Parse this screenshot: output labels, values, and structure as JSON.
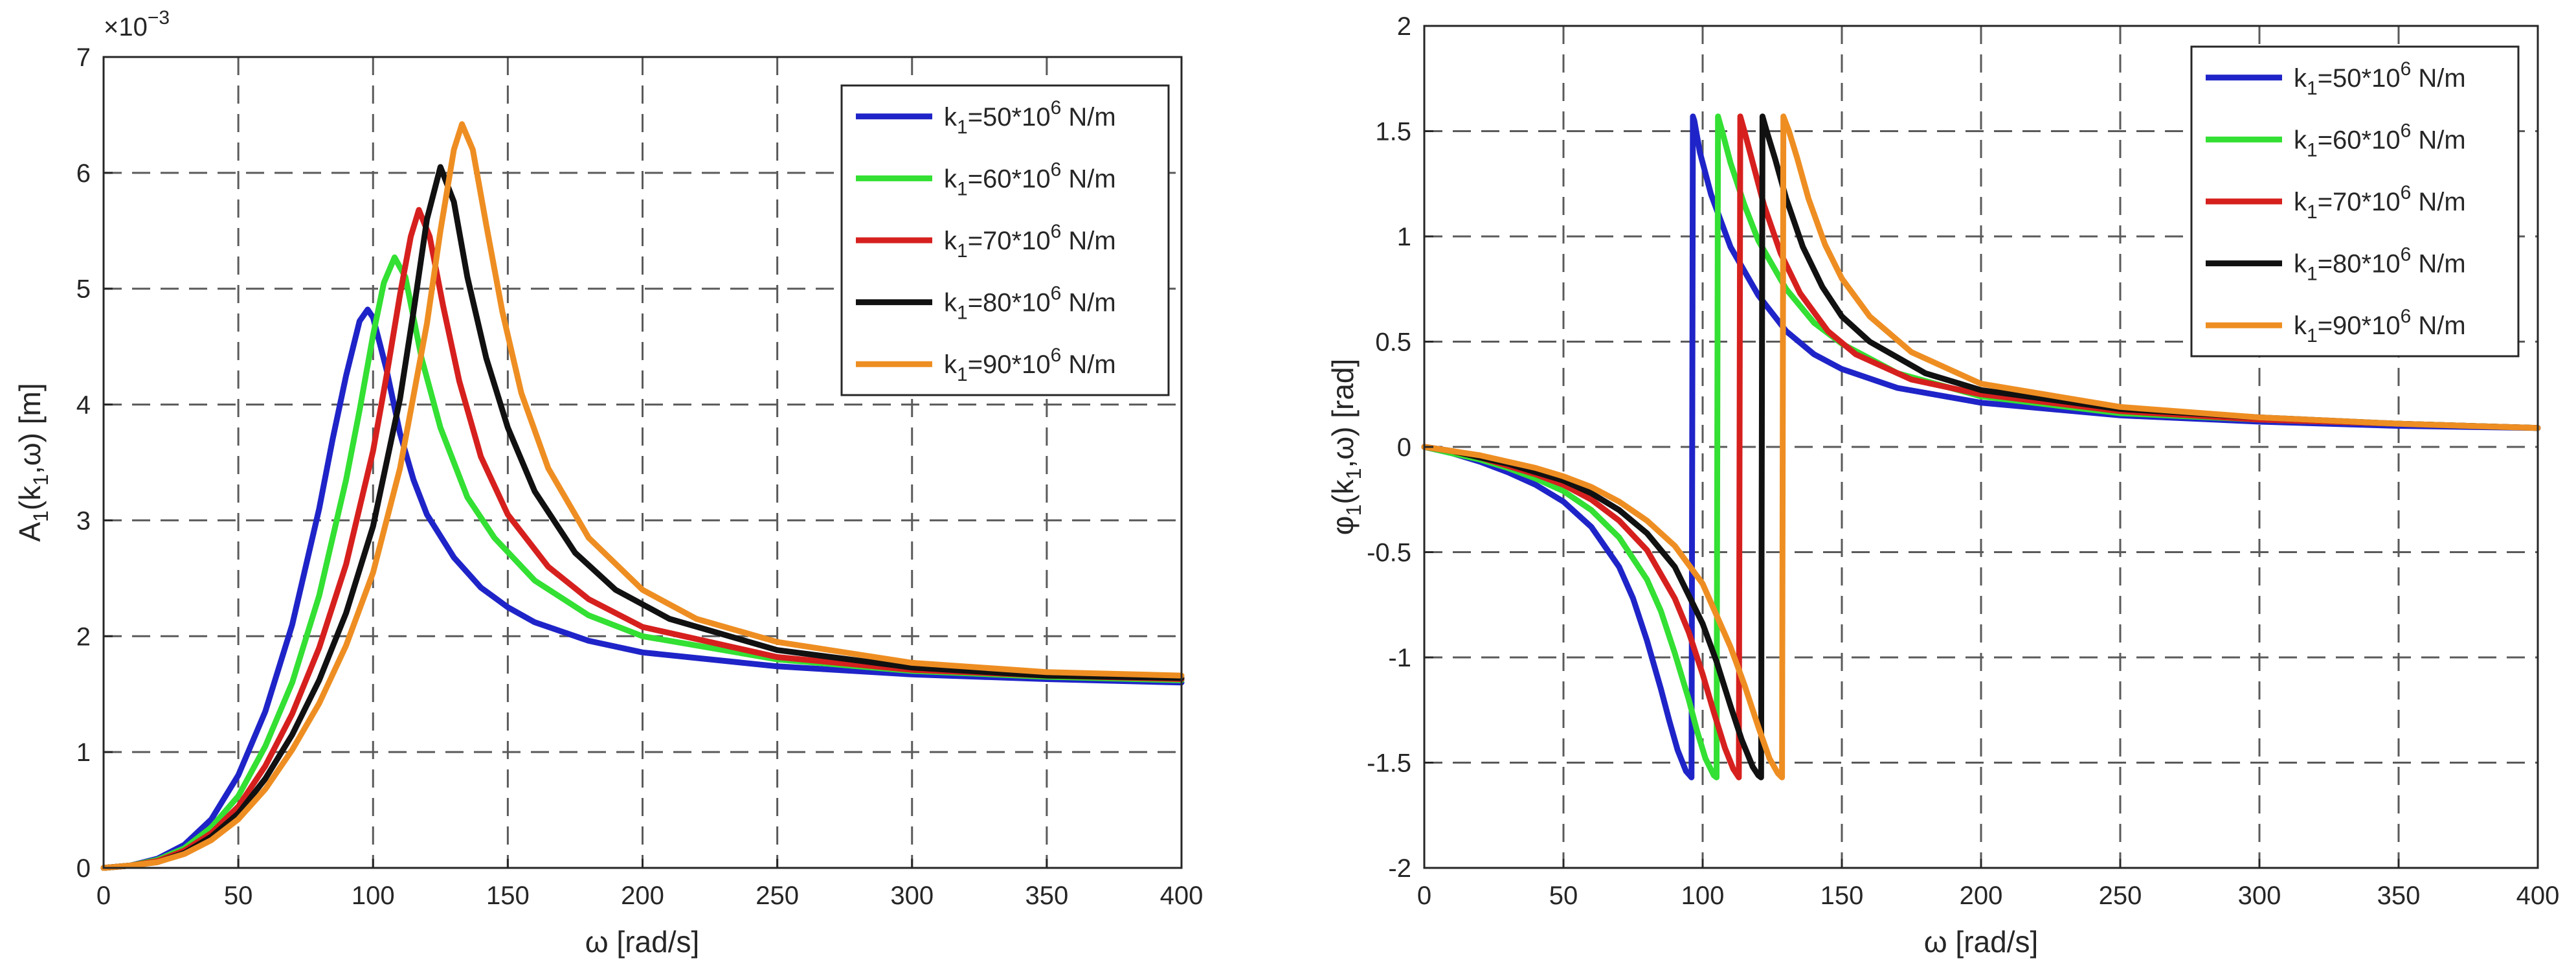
{
  "chart_data": [
    {
      "type": "line",
      "ylabel_prefix": "A",
      "ylabel_sub": "1",
      "ylabel_suffix": "(k",
      "ylabel_sub2": "1",
      "ylabel_tail": ",ω) [m]",
      "xlabel": "ω [rad/s]",
      "exponent_label": "×10",
      "exponent_power": "−3",
      "xlim": [
        0,
        400
      ],
      "ylim": [
        0,
        7
      ],
      "xticks": [
        0,
        50,
        100,
        150,
        200,
        250,
        300,
        350,
        400
      ],
      "yticks": [
        0,
        1,
        2,
        3,
        4,
        5,
        6,
        7
      ],
      "xtick_labels": [
        "0",
        "50",
        "100",
        "150",
        "200",
        "250",
        "300",
        "350",
        "400"
      ],
      "ytick_labels": [
        "0",
        "1",
        "2",
        "3",
        "4",
        "5",
        "6",
        "7"
      ],
      "grid": true,
      "legend_position": "top-right",
      "series": [
        {
          "name": "k1=50*10^6 N/m",
          "legend": {
            "pre": "k",
            "sub": "1",
            "mid": "=50*10",
            "sup": "6",
            "post": " N/m"
          },
          "color": "#1f24c8",
          "x": [
            0,
            10,
            20,
            30,
            40,
            50,
            60,
            70,
            80,
            85,
            90,
            95,
            98,
            100,
            105,
            110,
            115,
            120,
            130,
            140,
            150,
            160,
            180,
            200,
            250,
            300,
            350,
            400
          ],
          "y": [
            0,
            0.02,
            0.08,
            0.2,
            0.42,
            0.8,
            1.35,
            2.1,
            3.1,
            3.7,
            4.25,
            4.72,
            4.82,
            4.75,
            4.3,
            3.75,
            3.35,
            3.05,
            2.68,
            2.42,
            2.25,
            2.12,
            1.96,
            1.86,
            1.74,
            1.67,
            1.63,
            1.6
          ]
        },
        {
          "name": "k1=60*10^6 N/m",
          "legend": {
            "pre": "k",
            "sub": "1",
            "mid": "=60*10",
            "sup": "6",
            "post": " N/m"
          },
          "color": "#33e033",
          "x": [
            0,
            10,
            20,
            30,
            40,
            50,
            60,
            70,
            80,
            90,
            95,
            100,
            104,
            108,
            112,
            118,
            125,
            135,
            145,
            160,
            180,
            200,
            250,
            300,
            350,
            400
          ],
          "y": [
            0,
            0.02,
            0.07,
            0.17,
            0.35,
            0.62,
            1.05,
            1.6,
            2.35,
            3.35,
            3.95,
            4.6,
            5.05,
            5.27,
            5.1,
            4.4,
            3.8,
            3.2,
            2.85,
            2.48,
            2.18,
            2.0,
            1.8,
            1.7,
            1.65,
            1.62
          ]
        },
        {
          "name": "k1=70*10^6 N/m",
          "legend": {
            "pre": "k",
            "sub": "1",
            "mid": "=70*10",
            "sup": "6",
            "post": " N/m"
          },
          "color": "#d6201e",
          "x": [
            0,
            10,
            20,
            30,
            40,
            50,
            60,
            70,
            80,
            90,
            100,
            105,
            110,
            114,
            117,
            121,
            126,
            132,
            140,
            150,
            165,
            180,
            200,
            250,
            300,
            350,
            400
          ],
          "y": [
            0,
            0.02,
            0.06,
            0.15,
            0.3,
            0.53,
            0.88,
            1.33,
            1.9,
            2.62,
            3.6,
            4.25,
            4.95,
            5.45,
            5.68,
            5.45,
            4.85,
            4.2,
            3.55,
            3.05,
            2.6,
            2.32,
            2.08,
            1.82,
            1.71,
            1.66,
            1.63
          ]
        },
        {
          "name": "k1=80*10^6 N/m",
          "legend": {
            "pre": "k",
            "sub": "1",
            "mid": "=80*10",
            "sup": "6",
            "post": " N/m"
          },
          "color": "#111111",
          "x": [
            0,
            10,
            20,
            30,
            40,
            50,
            60,
            70,
            80,
            90,
            100,
            110,
            115,
            120,
            125,
            130,
            135,
            142,
            150,
            160,
            175,
            190,
            210,
            250,
            300,
            350,
            400
          ],
          "y": [
            0,
            0.02,
            0.05,
            0.13,
            0.27,
            0.47,
            0.77,
            1.15,
            1.62,
            2.2,
            2.95,
            4.05,
            4.8,
            5.6,
            6.05,
            5.75,
            5.1,
            4.4,
            3.8,
            3.25,
            2.72,
            2.4,
            2.15,
            1.88,
            1.73,
            1.66,
            1.64
          ]
        },
        {
          "name": "k1=90*10^6 N/m",
          "legend": {
            "pre": "k",
            "sub": "1",
            "mid": "=90*10",
            "sup": "6",
            "post": " N/m"
          },
          "color": "#ee8e22",
          "x": [
            0,
            10,
            20,
            30,
            40,
            50,
            60,
            70,
            80,
            90,
            100,
            110,
            120,
            125,
            130,
            133,
            137,
            142,
            148,
            155,
            165,
            180,
            200,
            220,
            250,
            300,
            350,
            400
          ],
          "y": [
            0,
            0.02,
            0.05,
            0.12,
            0.24,
            0.42,
            0.68,
            1.02,
            1.42,
            1.92,
            2.55,
            3.45,
            4.7,
            5.5,
            6.2,
            6.42,
            6.2,
            5.55,
            4.8,
            4.1,
            3.45,
            2.85,
            2.4,
            2.15,
            1.95,
            1.77,
            1.69,
            1.66
          ]
        }
      ]
    },
    {
      "type": "line",
      "ylabel_prefix": "φ",
      "ylabel_sub": "1",
      "ylabel_suffix": "(k",
      "ylabel_sub2": "1",
      "ylabel_tail": ",ω) [rad]",
      "xlabel": "ω [rad/s]",
      "xlim": [
        0,
        400
      ],
      "ylim": [
        -2,
        2
      ],
      "xticks": [
        0,
        50,
        100,
        150,
        200,
        250,
        300,
        350,
        400
      ],
      "yticks": [
        -2,
        -1.5,
        -1,
        -0.5,
        0,
        0.5,
        1,
        1.5,
        2
      ],
      "xtick_labels": [
        "0",
        "50",
        "100",
        "150",
        "200",
        "250",
        "300",
        "350",
        "400"
      ],
      "ytick_labels": [
        "-2",
        "-1.5",
        "-1",
        "-0.5",
        "0",
        "0.5",
        "1",
        "1.5",
        "2"
      ],
      "grid": true,
      "legend_position": "top-right",
      "series": [
        {
          "name": "k1=50*10^6 N/m",
          "legend": {
            "pre": "k",
            "sub": "1",
            "mid": "=50*10",
            "sup": "6",
            "post": " N/m"
          },
          "color": "#1f24c8",
          "x": [
            0,
            10,
            20,
            30,
            40,
            50,
            60,
            70,
            75,
            80,
            85,
            88,
            91,
            94,
            96,
            96.5,
            97,
            99,
            103,
            110,
            120,
            130,
            140,
            150,
            170,
            200,
            250,
            300,
            350,
            400
          ],
          "y": [
            0,
            -0.03,
            -0.07,
            -0.12,
            -0.18,
            -0.26,
            -0.38,
            -0.57,
            -0.72,
            -0.92,
            -1.15,
            -1.3,
            -1.44,
            -1.54,
            -1.57,
            1.57,
            1.55,
            1.4,
            1.2,
            0.95,
            0.72,
            0.55,
            0.44,
            0.37,
            0.28,
            0.21,
            0.15,
            0.12,
            0.1,
            0.09
          ]
        },
        {
          "name": "k1=60*10^6 N/m",
          "legend": {
            "pre": "k",
            "sub": "1",
            "mid": "=60*10",
            "sup": "6",
            "post": " N/m"
          },
          "color": "#33e033",
          "x": [
            0,
            10,
            20,
            30,
            40,
            50,
            60,
            70,
            80,
            85,
            90,
            95,
            98,
            101,
            104,
            105,
            105.5,
            107,
            110,
            115,
            120,
            130,
            140,
            150,
            170,
            200,
            250,
            300,
            350,
            400
          ],
          "y": [
            0,
            -0.03,
            -0.06,
            -0.1,
            -0.15,
            -0.21,
            -0.3,
            -0.43,
            -0.63,
            -0.78,
            -0.98,
            -1.2,
            -1.35,
            -1.48,
            -1.56,
            -1.57,
            1.57,
            1.5,
            1.35,
            1.15,
            0.98,
            0.75,
            0.59,
            0.49,
            0.35,
            0.24,
            0.16,
            0.13,
            0.11,
            0.09
          ]
        },
        {
          "name": "k1=70*10^6 N/m",
          "legend": {
            "pre": "k",
            "sub": "1",
            "mid": "=70*10",
            "sup": "6",
            "post": " N/m"
          },
          "color": "#d6201e",
          "x": [
            0,
            10,
            20,
            30,
            40,
            50,
            60,
            70,
            80,
            90,
            95,
            100,
            104,
            108,
            111,
            113,
            113.5,
            115,
            118,
            122,
            128,
            135,
            145,
            155,
            175,
            200,
            250,
            300,
            350,
            400
          ],
          "y": [
            0,
            -0.02,
            -0.05,
            -0.09,
            -0.13,
            -0.18,
            -0.25,
            -0.35,
            -0.49,
            -0.72,
            -0.88,
            -1.08,
            -1.26,
            -1.43,
            -1.53,
            -1.57,
            1.57,
            1.5,
            1.35,
            1.15,
            0.92,
            0.73,
            0.55,
            0.44,
            0.32,
            0.25,
            0.17,
            0.13,
            0.11,
            0.09
          ]
        },
        {
          "name": "k1=80*10^6 N/m",
          "legend": {
            "pre": "k",
            "sub": "1",
            "mid": "=80*10",
            "sup": "6",
            "post": " N/m"
          },
          "color": "#111111",
          "x": [
            0,
            10,
            20,
            30,
            40,
            50,
            60,
            70,
            80,
            90,
            100,
            105,
            110,
            114,
            118,
            120,
            121,
            121.5,
            123,
            126,
            130,
            136,
            143,
            150,
            160,
            180,
            200,
            250,
            300,
            350,
            400
          ],
          "y": [
            0,
            -0.02,
            -0.05,
            -0.08,
            -0.12,
            -0.16,
            -0.22,
            -0.3,
            -0.41,
            -0.57,
            -0.84,
            -1.02,
            -1.23,
            -1.39,
            -1.52,
            -1.56,
            -1.57,
            1.57,
            1.5,
            1.37,
            1.18,
            0.95,
            0.76,
            0.62,
            0.5,
            0.35,
            0.27,
            0.18,
            0.14,
            0.11,
            0.09
          ]
        },
        {
          "name": "k1=90*10^6 N/m",
          "legend": {
            "pre": "k",
            "sub": "1",
            "mid": "=90*10",
            "sup": "6",
            "post": " N/m"
          },
          "color": "#ee8e22",
          "x": [
            0,
            10,
            20,
            30,
            40,
            50,
            60,
            70,
            80,
            90,
            100,
            110,
            115,
            120,
            124,
            127,
            128.5,
            129,
            131,
            134,
            138,
            144,
            150,
            160,
            175,
            200,
            250,
            300,
            350,
            400
          ],
          "y": [
            0,
            -0.02,
            -0.04,
            -0.07,
            -0.1,
            -0.14,
            -0.19,
            -0.26,
            -0.35,
            -0.47,
            -0.65,
            -0.95,
            -1.13,
            -1.33,
            -1.48,
            -1.55,
            -1.57,
            1.57,
            1.5,
            1.37,
            1.18,
            0.96,
            0.8,
            0.62,
            0.45,
            0.3,
            0.19,
            0.14,
            0.11,
            0.09
          ]
        }
      ]
    }
  ]
}
